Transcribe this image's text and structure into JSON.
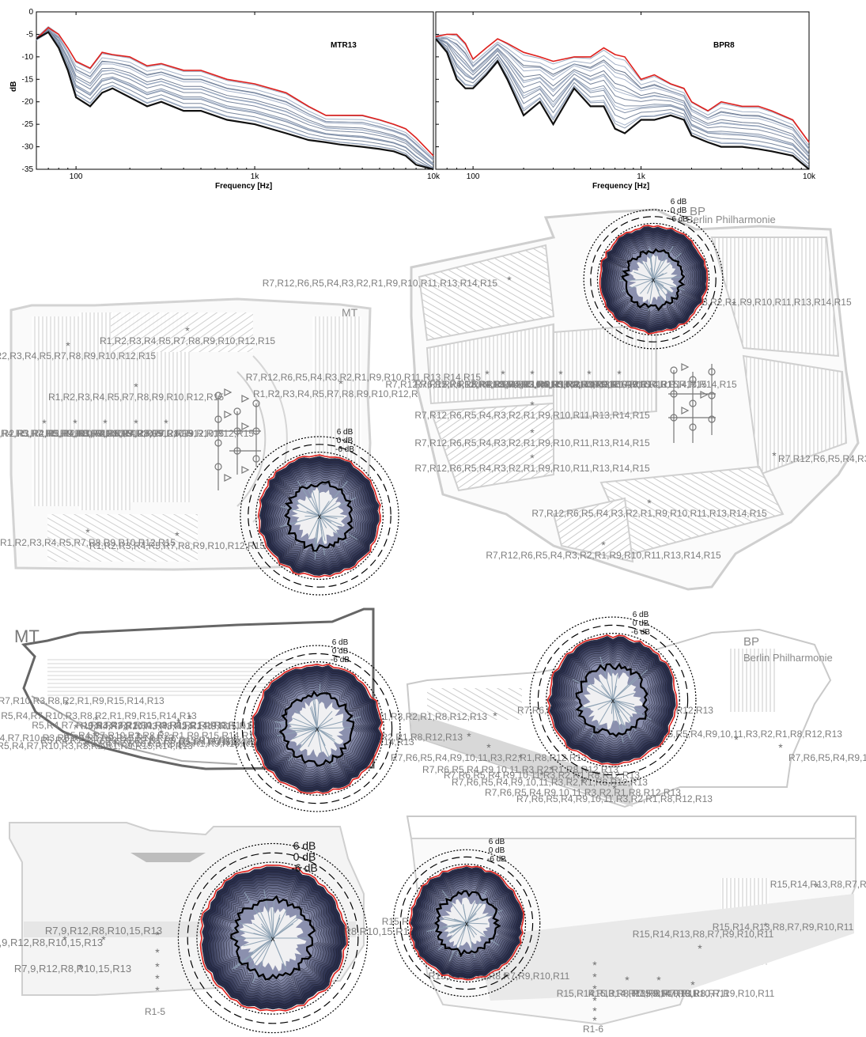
{
  "charts": {
    "left": {
      "label": "MTR13",
      "xlabel": "Frequency [Hz]",
      "ylabel": "dB",
      "yticks": [
        "0",
        "-5",
        "-10",
        "-15",
        "-20",
        "-25",
        "-30",
        "-35"
      ],
      "xticks": [
        "100",
        "1k",
        "10k"
      ]
    },
    "right": {
      "label": "BPR8",
      "xlabel": "Frequency [Hz]",
      "yticks": [
        "0",
        "-5",
        "-10",
        "-15",
        "-20",
        "-25",
        "-30",
        "-35"
      ],
      "xticks": [
        "100",
        "1k",
        "10k"
      ]
    }
  },
  "chart_data": [
    {
      "type": "line",
      "label": "MTR13",
      "xlabel": "Frequency [Hz]",
      "ylabel": "dB",
      "xscale": "log",
      "xlim": [
        60,
        10000
      ],
      "ylim": [
        -35,
        0
      ],
      "x": [
        60,
        70,
        80,
        90,
        100,
        120,
        140,
        160,
        200,
        250,
        300,
        400,
        500,
        700,
        1000,
        1500,
        2000,
        2500,
        3000,
        4000,
        5000,
        6000,
        7000,
        8000,
        10000
      ],
      "series": [
        {
          "color": "#e0201c",
          "values": [
            -6,
            -3.5,
            -5,
            -8,
            -11,
            -12.5,
            -9,
            -9.5,
            -10,
            -12,
            -11.5,
            -13,
            -13,
            -15,
            -16,
            -18,
            -21,
            -23,
            -23,
            -23,
            -24,
            -25,
            -26,
            -28,
            -32
          ]
        },
        {
          "color": "#111111",
          "values": [
            -6,
            -4.5,
            -8,
            -13,
            -19,
            -21,
            -18,
            -17,
            -19,
            -21,
            -20,
            -22,
            -22,
            -24,
            -25,
            -27,
            -28.5,
            -29,
            -29.5,
            -30,
            -30.5,
            -31,
            -32,
            -34,
            -36
          ]
        }
      ]
    },
    {
      "type": "line",
      "label": "BPR8",
      "xlabel": "Frequency [Hz]",
      "xscale": "log",
      "xlim": [
        60,
        10000
      ],
      "ylim": [
        -35,
        0
      ],
      "x": [
        60,
        70,
        80,
        90,
        100,
        120,
        140,
        160,
        200,
        250,
        300,
        400,
        500,
        600,
        700,
        800,
        1000,
        1200,
        1500,
        1800,
        2000,
        2500,
        3000,
        4000,
        5000,
        6000,
        8000,
        10000
      ],
      "series": [
        {
          "color": "#e0201c",
          "values": [
            -5.5,
            -5,
            -5,
            -7,
            -10.5,
            -8,
            -6,
            -7,
            -9,
            -10,
            -11,
            -10,
            -10,
            -8,
            -9.5,
            -10,
            -15,
            -14,
            -16,
            -17,
            -20,
            -22,
            -20,
            -21,
            -21,
            -22,
            -24,
            -29
          ]
        },
        {
          "color": "#111111",
          "values": [
            -6,
            -9,
            -15,
            -17,
            -17,
            -14,
            -11,
            -15,
            -23,
            -20,
            -25,
            -17,
            -21,
            -21,
            -26,
            -27,
            -24,
            -24,
            -23,
            -24,
            -27.5,
            -29,
            -30,
            -30,
            -30.5,
            -31,
            -32,
            -35
          ]
        }
      ]
    }
  ],
  "polar_labels": {
    "plus": "6 dB",
    "zero": "0 dB",
    "minus": "-6 dB"
  },
  "halls": {
    "mt": {
      "name": "MT",
      "receivers": [
        "R1",
        "R2",
        "R3",
        "R4",
        "R5",
        "R7",
        "R8",
        "R9",
        "R10",
        "R12",
        "R15"
      ],
      "section_receivers": [
        "R5",
        "R4",
        "R7",
        "R10",
        "R3",
        "R8",
        "R2",
        "R1",
        "R9",
        "R15",
        "R14",
        "R13"
      ],
      "long_receivers": [
        "R7,9",
        "R12",
        "R8",
        "R10,15",
        "R13"
      ],
      "long_group": "R1-5"
    },
    "bp": {
      "code": "BP",
      "name": "Berlin Philharmonie",
      "receivers": [
        "R7",
        "R12",
        "R6",
        "R5",
        "R4",
        "R3",
        "R2",
        "R1",
        "R9",
        "R10",
        "R11",
        "R13",
        "R14",
        "R15"
      ],
      "section_receivers": [
        "R7",
        "R6",
        "R5",
        "R4",
        "R9,10,11",
        "R3",
        "R2",
        "R1",
        "R8",
        "R12",
        "R13"
      ],
      "long_receivers": [
        "R15",
        "R14",
        "R13",
        "R8",
        "R7",
        "R9",
        "R10",
        "R11"
      ],
      "long_group": "R1-6"
    }
  }
}
